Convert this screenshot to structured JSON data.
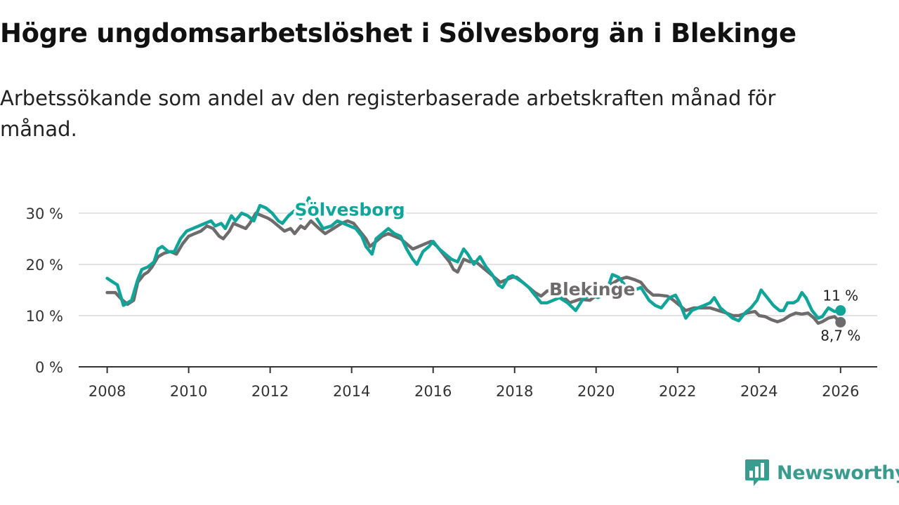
{
  "title": "Högre ungdomsarbetslöshet i Sölvesborg än i Blekinge",
  "subtitle": "Arbetssökande som andel av den registerbaserade arbetskraften månad för månad.",
  "brand": {
    "name": "Newsworthy",
    "icon": "newsworthy-logo-icon",
    "color": "#3a9b8e"
  },
  "chart_data": {
    "type": "line",
    "title": "Högre ungdomsarbetslöshet i Sölvesborg än i Blekinge",
    "xlabel": "",
    "ylabel": "",
    "xlim": [
      2007.3,
      2026.9
    ],
    "ylim": [
      0,
      33
    ],
    "x_ticks": [
      2008,
      2010,
      2012,
      2014,
      2016,
      2018,
      2020,
      2022,
      2024,
      2026
    ],
    "x_tick_labels": [
      "2008",
      "2010",
      "2012",
      "2014",
      "2016",
      "2018",
      "2020",
      "2022",
      "2024",
      "2026"
    ],
    "y_ticks": [
      0,
      10,
      20,
      30
    ],
    "y_tick_labels": [
      "0 %",
      "10 %",
      "20 %",
      "30 %"
    ],
    "grid": "horizontal",
    "series": [
      {
        "name": "Blekinge",
        "label": "Blekinge",
        "color": "#6d6b6c",
        "end_label": "8,7 %",
        "points": [
          [
            2008.0,
            14.5
          ],
          [
            2008.2,
            14.5
          ],
          [
            2008.35,
            13.2
          ],
          [
            2008.5,
            12.2
          ],
          [
            2008.65,
            13.0
          ],
          [
            2008.75,
            16.5
          ],
          [
            2008.9,
            18.0
          ],
          [
            2009.0,
            18.5
          ],
          [
            2009.1,
            19.5
          ],
          [
            2009.25,
            21.5
          ],
          [
            2009.4,
            22.2
          ],
          [
            2009.55,
            22.5
          ],
          [
            2009.7,
            22.0
          ],
          [
            2009.85,
            24.0
          ],
          [
            2010.0,
            25.5
          ],
          [
            2010.15,
            26.0
          ],
          [
            2010.3,
            26.5
          ],
          [
            2010.45,
            27.5
          ],
          [
            2010.6,
            27.0
          ],
          [
            2010.75,
            25.5
          ],
          [
            2010.85,
            25.0
          ],
          [
            2011.0,
            26.5
          ],
          [
            2011.1,
            28.0
          ],
          [
            2011.25,
            27.5
          ],
          [
            2011.4,
            27.0
          ],
          [
            2011.5,
            28.0
          ],
          [
            2011.65,
            30.0
          ],
          [
            2011.8,
            29.5
          ],
          [
            2011.95,
            29.0
          ],
          [
            2012.05,
            28.5
          ],
          [
            2012.2,
            27.5
          ],
          [
            2012.35,
            26.5
          ],
          [
            2012.5,
            27.0
          ],
          [
            2012.6,
            26.0
          ],
          [
            2012.75,
            27.5
          ],
          [
            2012.85,
            27.0
          ],
          [
            2013.0,
            28.5
          ],
          [
            2013.2,
            27.0
          ],
          [
            2013.35,
            26.0
          ],
          [
            2013.55,
            27.0
          ],
          [
            2013.75,
            28.0
          ],
          [
            2013.9,
            28.5
          ],
          [
            2014.05,
            28.0
          ],
          [
            2014.2,
            26.5
          ],
          [
            2014.35,
            25.0
          ],
          [
            2014.45,
            23.5
          ],
          [
            2014.6,
            24.5
          ],
          [
            2014.75,
            25.5
          ],
          [
            2014.9,
            26.0
          ],
          [
            2015.05,
            25.5
          ],
          [
            2015.2,
            25.0
          ],
          [
            2015.35,
            24.0
          ],
          [
            2015.5,
            23.0
          ],
          [
            2015.65,
            23.5
          ],
          [
            2015.8,
            24.0
          ],
          [
            2015.95,
            24.5
          ],
          [
            2016.1,
            23.5
          ],
          [
            2016.25,
            22.0
          ],
          [
            2016.4,
            20.5
          ],
          [
            2016.5,
            19.0
          ],
          [
            2016.6,
            18.5
          ],
          [
            2016.75,
            21.0
          ],
          [
            2016.9,
            20.5
          ],
          [
            2017.05,
            20.5
          ],
          [
            2017.2,
            19.5
          ],
          [
            2017.35,
            18.5
          ],
          [
            2017.5,
            17.5
          ],
          [
            2017.65,
            16.5
          ],
          [
            2017.8,
            17.0
          ],
          [
            2017.95,
            17.5
          ],
          [
            2018.05,
            17.5
          ],
          [
            2018.2,
            16.5
          ],
          [
            2018.35,
            15.5
          ],
          [
            2018.5,
            14.5
          ],
          [
            2018.65,
            13.8
          ],
          [
            2018.8,
            14.8
          ],
          [
            2019.0,
            15.0
          ],
          [
            2019.15,
            14.0
          ],
          [
            2019.35,
            12.5
          ],
          [
            2019.6,
            13.2
          ],
          [
            2019.85,
            13.0
          ],
          [
            2020.1,
            14.5
          ],
          [
            2020.35,
            16.0
          ],
          [
            2020.55,
            17.0
          ],
          [
            2020.75,
            17.5
          ],
          [
            2020.95,
            17.0
          ],
          [
            2021.1,
            16.5
          ],
          [
            2021.25,
            15.0
          ],
          [
            2021.4,
            14.0
          ],
          [
            2021.55,
            14.0
          ],
          [
            2021.75,
            13.8
          ],
          [
            2021.9,
            13.0
          ],
          [
            2022.05,
            12.0
          ],
          [
            2022.2,
            11.0
          ],
          [
            2022.4,
            11.5
          ],
          [
            2022.6,
            11.5
          ],
          [
            2022.8,
            11.5
          ],
          [
            2023.0,
            11.0
          ],
          [
            2023.2,
            10.5
          ],
          [
            2023.35,
            10.0
          ],
          [
            2023.5,
            10.0
          ],
          [
            2023.7,
            10.5
          ],
          [
            2023.9,
            10.8
          ],
          [
            2024.0,
            10.0
          ],
          [
            2024.15,
            9.8
          ],
          [
            2024.3,
            9.2
          ],
          [
            2024.45,
            8.8
          ],
          [
            2024.6,
            9.2
          ],
          [
            2024.75,
            10.0
          ],
          [
            2024.9,
            10.5
          ],
          [
            2025.05,
            10.3
          ],
          [
            2025.2,
            10.5
          ],
          [
            2025.35,
            9.5
          ],
          [
            2025.45,
            8.5
          ],
          [
            2025.55,
            8.8
          ],
          [
            2025.7,
            9.5
          ],
          [
            2025.85,
            9.8
          ],
          [
            2026.0,
            8.7
          ]
        ]
      },
      {
        "name": "Sölvesborg",
        "label": "Sölvesborg",
        "color": "#11a59a",
        "end_label": "11 %",
        "points": [
          [
            2008.0,
            17.3
          ],
          [
            2008.15,
            16.5
          ],
          [
            2008.25,
            16.0
          ],
          [
            2008.4,
            12.0
          ],
          [
            2008.5,
            12.5
          ],
          [
            2008.6,
            13.0
          ],
          [
            2008.75,
            17.0
          ],
          [
            2008.85,
            19.0
          ],
          [
            2009.0,
            19.5
          ],
          [
            2009.15,
            20.5
          ],
          [
            2009.25,
            23.0
          ],
          [
            2009.35,
            23.5
          ],
          [
            2009.5,
            22.5
          ],
          [
            2009.65,
            22.5
          ],
          [
            2009.8,
            25.0
          ],
          [
            2009.95,
            26.5
          ],
          [
            2010.1,
            27.0
          ],
          [
            2010.25,
            27.5
          ],
          [
            2010.4,
            28.0
          ],
          [
            2010.55,
            28.5
          ],
          [
            2010.65,
            27.5
          ],
          [
            2010.8,
            28.0
          ],
          [
            2010.9,
            27.0
          ],
          [
            2011.05,
            29.5
          ],
          [
            2011.15,
            28.5
          ],
          [
            2011.3,
            30.0
          ],
          [
            2011.45,
            29.5
          ],
          [
            2011.6,
            28.5
          ],
          [
            2011.75,
            31.5
          ],
          [
            2011.9,
            31.0
          ],
          [
            2012.05,
            30.0
          ],
          [
            2012.2,
            28.5
          ],
          [
            2012.3,
            28.0
          ],
          [
            2012.45,
            29.5
          ],
          [
            2012.6,
            30.5
          ],
          [
            2012.75,
            29.0
          ],
          [
            2012.85,
            31.0
          ],
          [
            2012.95,
            33.0
          ],
          [
            2013.1,
            29.5
          ],
          [
            2013.3,
            27.0
          ],
          [
            2013.5,
            27.5
          ],
          [
            2013.65,
            28.5
          ],
          [
            2013.8,
            28.0
          ],
          [
            2013.95,
            27.5
          ],
          [
            2014.1,
            27.0
          ],
          [
            2014.25,
            25.5
          ],
          [
            2014.35,
            23.5
          ],
          [
            2014.5,
            22.0
          ],
          [
            2014.6,
            25.0
          ],
          [
            2014.75,
            26.0
          ],
          [
            2014.9,
            27.0
          ],
          [
            2015.05,
            26.0
          ],
          [
            2015.2,
            25.5
          ],
          [
            2015.35,
            23.0
          ],
          [
            2015.5,
            21.0
          ],
          [
            2015.6,
            20.0
          ],
          [
            2015.75,
            22.5
          ],
          [
            2015.9,
            23.5
          ],
          [
            2016.0,
            24.5
          ],
          [
            2016.15,
            23.0
          ],
          [
            2016.3,
            22.0
          ],
          [
            2016.45,
            21.0
          ],
          [
            2016.6,
            20.5
          ],
          [
            2016.75,
            23.0
          ],
          [
            2016.85,
            22.0
          ],
          [
            2017.0,
            20.0
          ],
          [
            2017.15,
            21.5
          ],
          [
            2017.3,
            19.5
          ],
          [
            2017.45,
            18.0
          ],
          [
            2017.6,
            16.0
          ],
          [
            2017.7,
            15.5
          ],
          [
            2017.85,
            17.5
          ],
          [
            2017.95,
            17.8
          ],
          [
            2018.1,
            17.0
          ],
          [
            2018.2,
            16.5
          ],
          [
            2018.35,
            15.5
          ],
          [
            2018.5,
            14.0
          ],
          [
            2018.65,
            12.5
          ],
          [
            2018.8,
            12.5
          ],
          [
            2018.95,
            13.0
          ],
          [
            2019.1,
            13.5
          ],
          [
            2019.3,
            12.5
          ],
          [
            2019.5,
            11.0
          ],
          [
            2019.7,
            13.5
          ],
          [
            2019.9,
            14.0
          ],
          [
            2020.05,
            13.5
          ],
          [
            2020.25,
            14.5
          ],
          [
            2020.4,
            18.0
          ],
          [
            2020.55,
            17.5
          ],
          [
            2020.75,
            15.5
          ],
          [
            2020.95,
            15.0
          ],
          [
            2021.1,
            15.5
          ],
          [
            2021.3,
            13.0
          ],
          [
            2021.45,
            12.0
          ],
          [
            2021.6,
            11.5
          ],
          [
            2021.8,
            13.5
          ],
          [
            2021.95,
            14.0
          ],
          [
            2022.05,
            12.5
          ],
          [
            2022.2,
            9.5
          ],
          [
            2022.35,
            11.0
          ],
          [
            2022.5,
            11.5
          ],
          [
            2022.65,
            12.0
          ],
          [
            2022.8,
            12.5
          ],
          [
            2022.9,
            13.5
          ],
          [
            2023.05,
            11.5
          ],
          [
            2023.2,
            10.5
          ],
          [
            2023.35,
            9.5
          ],
          [
            2023.5,
            9.0
          ],
          [
            2023.65,
            10.5
          ],
          [
            2023.8,
            11.5
          ],
          [
            2023.95,
            13.0
          ],
          [
            2024.05,
            15.0
          ],
          [
            2024.2,
            13.5
          ],
          [
            2024.35,
            12.0
          ],
          [
            2024.5,
            11.0
          ],
          [
            2024.6,
            11.0
          ],
          [
            2024.7,
            12.5
          ],
          [
            2024.85,
            12.5
          ],
          [
            2024.95,
            13.0
          ],
          [
            2025.05,
            14.5
          ],
          [
            2025.15,
            13.5
          ],
          [
            2025.3,
            11.0
          ],
          [
            2025.45,
            9.5
          ],
          [
            2025.55,
            9.8
          ],
          [
            2025.7,
            11.5
          ],
          [
            2025.85,
            10.8
          ],
          [
            2026.0,
            11.0
          ]
        ]
      }
    ]
  }
}
